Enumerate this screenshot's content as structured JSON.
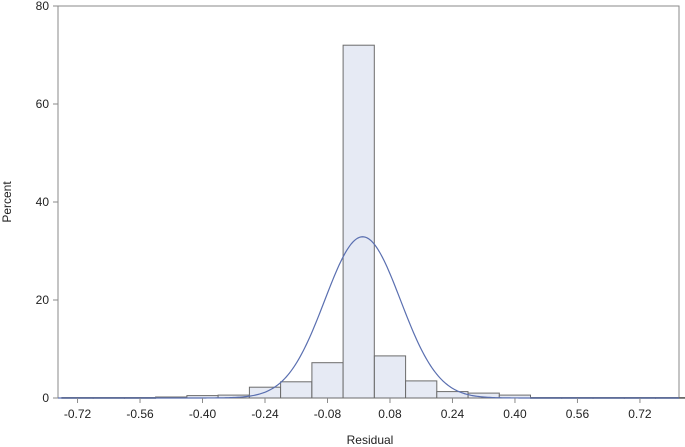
{
  "chart_data": {
    "type": "bar",
    "title": "",
    "xlabel": "Residual",
    "ylabel": "Percent",
    "xlim": [
      -0.77,
      0.82
    ],
    "ylim": [
      0,
      80
    ],
    "x_ticks": [
      "-0.72",
      "-0.56",
      "-0.40",
      "-0.24",
      "-0.08",
      "0.08",
      "0.24",
      "0.40",
      "0.56",
      "0.72"
    ],
    "y_ticks": [
      "0",
      "20",
      "40",
      "60",
      "80"
    ],
    "bin_width": 0.08,
    "bins": [
      {
        "center": -0.72,
        "value": 0.1
      },
      {
        "center": -0.64,
        "value": 0.1
      },
      {
        "center": -0.56,
        "value": 0.1
      },
      {
        "center": -0.48,
        "value": 0.2
      },
      {
        "center": -0.4,
        "value": 0.5
      },
      {
        "center": -0.32,
        "value": 0.6
      },
      {
        "center": -0.24,
        "value": 2.2
      },
      {
        "center": -0.16,
        "value": 3.3
      },
      {
        "center": -0.08,
        "value": 7.2
      },
      {
        "center": 0.0,
        "value": 72.0
      },
      {
        "center": 0.08,
        "value": 8.6
      },
      {
        "center": 0.16,
        "value": 3.5
      },
      {
        "center": 0.24,
        "value": 1.3
      },
      {
        "center": 0.32,
        "value": 1.0
      },
      {
        "center": 0.4,
        "value": 0.6
      },
      {
        "center": 0.48,
        "value": 0.1
      },
      {
        "center": 0.56,
        "value": 0.1
      },
      {
        "center": 0.64,
        "value": 0.1
      },
      {
        "center": 0.72,
        "value": 0.1
      },
      {
        "center": 0.8,
        "value": 0.1
      }
    ],
    "normal_curve": {
      "mean": 0.01,
      "sd": 0.097
    },
    "grid": false,
    "bar_fill": "#e6eaf4",
    "bar_stroke": "#6b6b6b",
    "curve_color": "#5a6fb0"
  }
}
